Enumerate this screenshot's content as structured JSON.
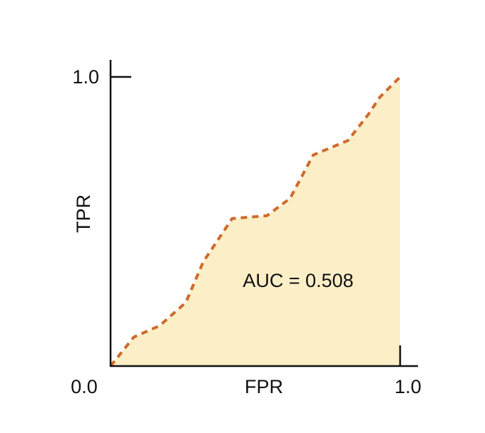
{
  "chart_data": {
    "type": "area",
    "title": "",
    "xlabel": "FPR",
    "ylabel": "TPR",
    "xlim": [
      0.0,
      1.0
    ],
    "ylim": [
      0.0,
      1.0
    ],
    "x_tick_labels": [
      "0.0",
      "1.0"
    ],
    "y_tick_labels": [
      "1.0"
    ],
    "annotation": "AUC = 0.508",
    "grid": false,
    "legend": "none",
    "series": [
      {
        "x": [
          0.0,
          0.08,
          0.17,
          0.26,
          0.32,
          0.42,
          0.54,
          0.62,
          0.7,
          0.82,
          0.89,
          0.93,
          1.0
        ],
        "y": [
          0.0,
          0.1,
          0.14,
          0.22,
          0.36,
          0.51,
          0.52,
          0.58,
          0.73,
          0.78,
          0.87,
          0.93,
          1.0
        ]
      }
    ],
    "colors": {
      "curve": "#CF6A2C",
      "fill": "#FCEFC8",
      "axis": "#111111"
    }
  }
}
